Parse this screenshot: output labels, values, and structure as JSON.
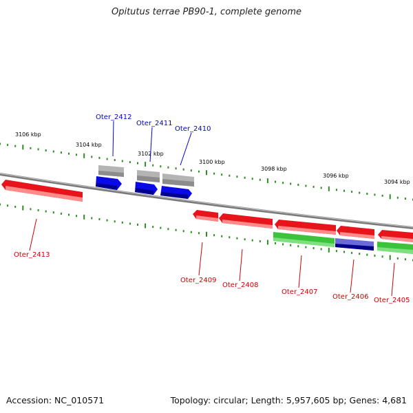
{
  "title": "Opitutus terrae PB90-1, complete genome",
  "footer": {
    "accession": "Accession: NC_010571",
    "topology": "Topology: circular; Length: 5,957,605 bp; Genes: 4,681"
  },
  "colors": {
    "backbone": "#8a8a8a",
    "tick": "#2e8b22",
    "forward_cds": "#e8141c",
    "reverse_cds": "#3bc43b",
    "rna": "#b4b4b4",
    "blue_feature": "#0a0ae8",
    "dark_blue": "#00008b",
    "label_red": "#cc0000",
    "label_blue": "#0000cc"
  },
  "scale_labels": [
    "3106 kbp",
    "3104 kbp",
    "3102 kbp",
    "3100 kbp",
    "3098 kbp",
    "3096 kbp",
    "3094 kbp"
  ],
  "gene_labels_top": [
    "Oter_2412",
    "Oter_2411",
    "Oter_2410"
  ],
  "gene_labels_bottom": [
    "Oter_2413",
    "Oter_2409",
    "Oter_2408",
    "Oter_2407",
    "Oter_2406",
    "Oter_2405"
  ]
}
